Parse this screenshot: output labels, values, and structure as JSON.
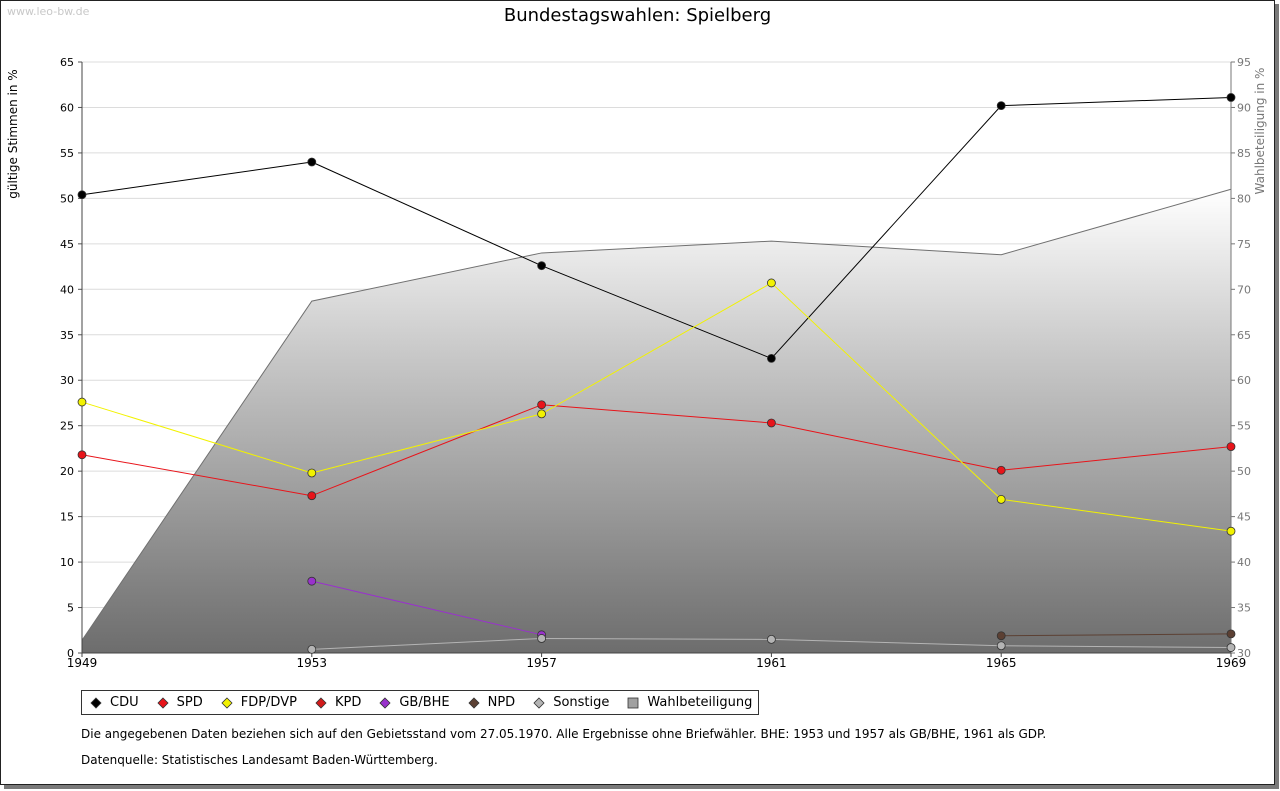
{
  "watermark": "www.leo-bw.de",
  "chart_data": {
    "type": "line",
    "title": "Bundestagswahlen: Spielberg",
    "xlabel": "",
    "ylabel": "gültige Stimmen in %",
    "ylabel_right": "Wahlbeteiligung in %",
    "categories": [
      "1949",
      "1953",
      "1957",
      "1961",
      "1965",
      "1969"
    ],
    "ylim": [
      0,
      65
    ],
    "ylim_right": [
      30,
      95
    ],
    "y_ticks": [
      0,
      5,
      10,
      15,
      20,
      25,
      30,
      35,
      40,
      45,
      50,
      55,
      60,
      65
    ],
    "y_right_ticks": [
      30,
      35,
      40,
      45,
      50,
      55,
      60,
      65,
      70,
      75,
      80,
      85,
      90,
      95
    ],
    "grid": true,
    "legend_position": "bottom",
    "series": [
      {
        "name": "CDU",
        "color": "#000000",
        "values": [
          50.4,
          54.0,
          42.6,
          32.4,
          60.2,
          61.1
        ]
      },
      {
        "name": "SPD",
        "color": "#e8141a",
        "values": [
          21.8,
          17.3,
          27.3,
          25.3,
          20.1,
          22.7
        ]
      },
      {
        "name": "FDP/DVP",
        "color": "#f2f200",
        "values": [
          27.6,
          19.8,
          26.3,
          40.7,
          16.9,
          13.4
        ]
      },
      {
        "name": "KPD",
        "color": "#d11a1a",
        "values": [
          null,
          null,
          null,
          null,
          null,
          null
        ]
      },
      {
        "name": "GB/BHE",
        "color": "#9932cc",
        "values": [
          null,
          7.9,
          2.0,
          null,
          null,
          null
        ]
      },
      {
        "name": "NPD",
        "color": "#5c4033",
        "values": [
          null,
          null,
          null,
          null,
          1.9,
          2.1
        ]
      },
      {
        "name": "Sonstige",
        "color": "#b4b4b4",
        "values": [
          null,
          0.4,
          1.6,
          1.5,
          0.8,
          0.6
        ]
      }
    ],
    "area_series": {
      "name": "Wahlbeteiligung",
      "axis": "right",
      "values": [
        31.4,
        68.7,
        74.0,
        75.3,
        73.8,
        81.0
      ]
    }
  },
  "legend": {
    "items": [
      {
        "label": "CDU",
        "color": "#000000",
        "marker": "diamond"
      },
      {
        "label": "SPD",
        "color": "#e8141a",
        "marker": "diamond"
      },
      {
        "label": "FDP/DVP",
        "color": "#f2f200",
        "marker": "diamond"
      },
      {
        "label": "KPD",
        "color": "#d11a1a",
        "marker": "diamond"
      },
      {
        "label": "GB/BHE",
        "color": "#9932cc",
        "marker": "diamond"
      },
      {
        "label": "NPD",
        "color": "#5c4033",
        "marker": "diamond"
      },
      {
        "label": "Sonstige",
        "color": "#b4b4b4",
        "marker": "diamond"
      },
      {
        "label": "Wahlbeteiligung",
        "color": "#a0a0a0",
        "marker": "square"
      }
    ]
  },
  "notes": {
    "line1": "Die angegebenen Daten beziehen sich auf den Gebietsstand vom 27.05.1970. Alle Ergebnisse ohne Briefwähler. BHE: 1953 und 1957 als GB/BHE, 1961 als GDP.",
    "line2": "Datenquelle: Statistisches Landesamt Baden-Württemberg."
  }
}
